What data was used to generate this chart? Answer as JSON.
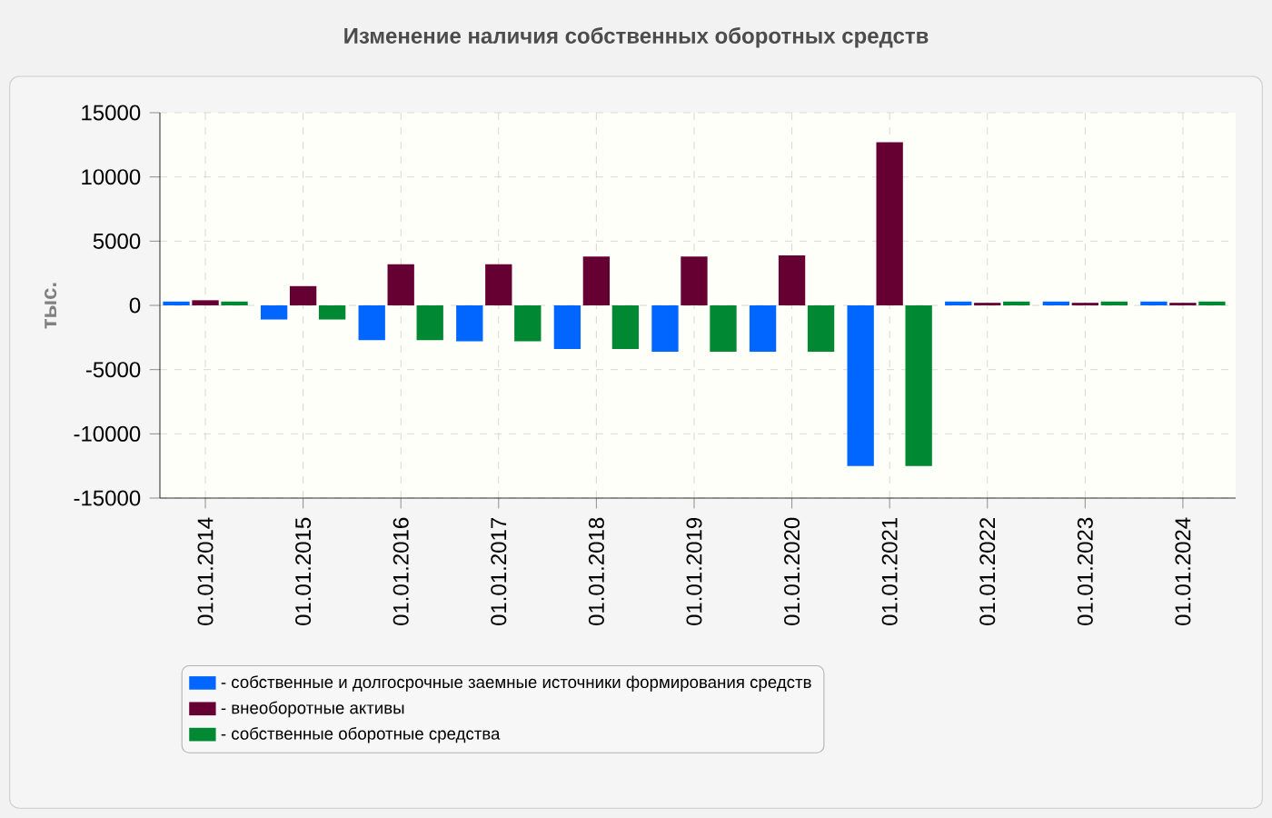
{
  "chart_data": {
    "type": "bar",
    "title": "Изменение наличия собственных оборотных средств",
    "ylabel": "тыс.",
    "categories": [
      "01.01.2014",
      "01.01.2015",
      "01.01.2016",
      "01.01.2017",
      "01.01.2018",
      "01.01.2019",
      "01.01.2020",
      "01.01.2021",
      "01.01.2022",
      "01.01.2023",
      "01.01.2024"
    ],
    "series": [
      {
        "name": "- собственные и долгосрочные заемные источники формирования средств",
        "color": "#0066ff",
        "values": [
          300,
          -1100,
          -2700,
          -2800,
          -3400,
          -3600,
          -3600,
          -12500,
          300,
          300,
          300
        ]
      },
      {
        "name": "- внеоборотные активы",
        "color": "#660033",
        "values": [
          400,
          1500,
          3200,
          3200,
          3800,
          3800,
          3900,
          12700,
          200,
          200,
          200
        ]
      },
      {
        "name": "- собственные оборотные средства",
        "color": "#008833",
        "values": [
          300,
          -1100,
          -2700,
          -2800,
          -3400,
          -3600,
          -3600,
          -12500,
          300,
          300,
          300
        ]
      }
    ],
    "ylim": [
      -15000,
      15000
    ],
    "yticks": [
      -15000,
      -10000,
      -5000,
      0,
      5000,
      10000,
      15000
    ],
    "grid": true,
    "legend": "bottom"
  }
}
